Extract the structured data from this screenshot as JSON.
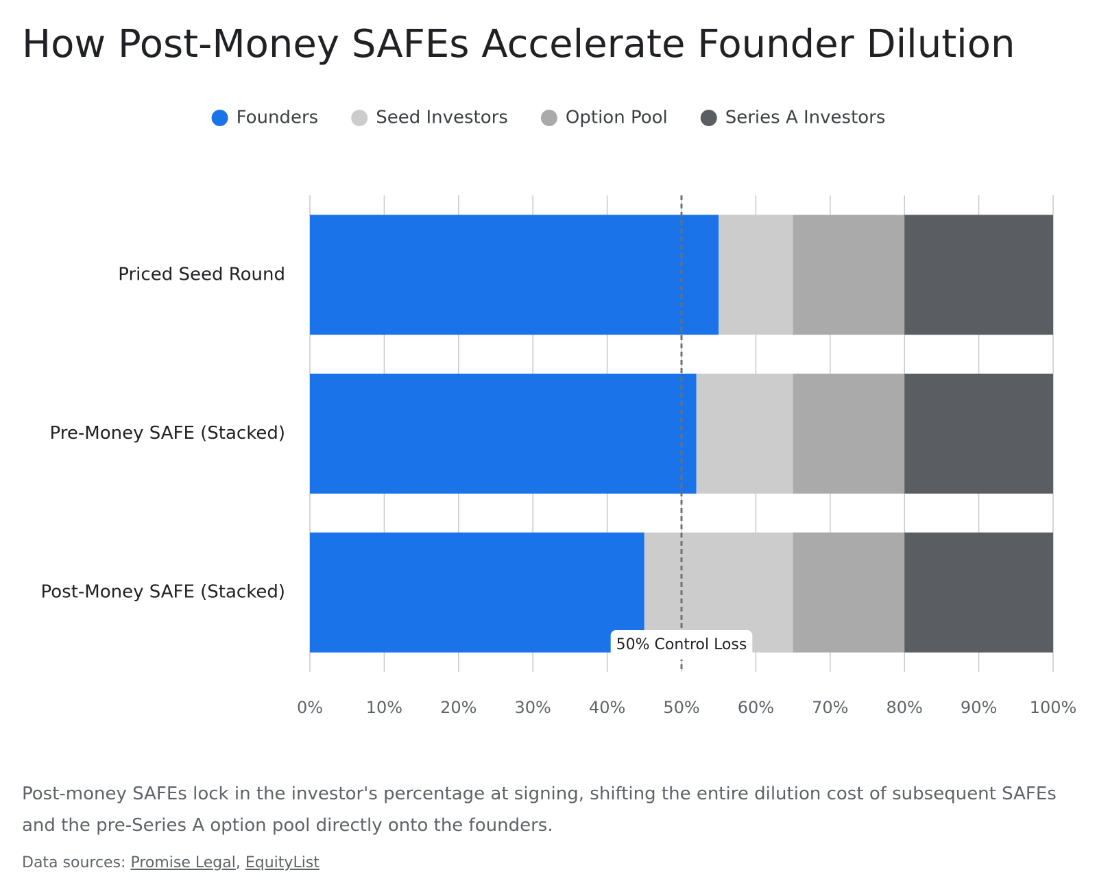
{
  "chart_data": {
    "type": "stacked-barh",
    "title": "How Post-Money SAFEs Accelerate Founder Dilution",
    "categories": [
      "Priced Seed Round",
      "Pre-Money SAFE (Stacked)",
      "Post-Money SAFE (Stacked)"
    ],
    "series": [
      {
        "name": "Founders",
        "color": "#1a73e8",
        "values": [
          55,
          52,
          45
        ]
      },
      {
        "name": "Seed Investors",
        "color": "#cccccc",
        "values": [
          10,
          13,
          20
        ]
      },
      {
        "name": "Option Pool",
        "color": "#aaaaaa",
        "values": [
          15,
          15,
          15
        ]
      },
      {
        "name": "Series A Investors",
        "color": "#5a5d61",
        "values": [
          20,
          20,
          20
        ]
      }
    ],
    "xlim": [
      0,
      100
    ],
    "xticks": [
      {
        "value": 0,
        "label": "0%"
      },
      {
        "value": 10,
        "label": "10%"
      },
      {
        "value": 20,
        "label": "20%"
      },
      {
        "value": 30,
        "label": "30%"
      },
      {
        "value": 40,
        "label": "40%"
      },
      {
        "value": 50,
        "label": "50%"
      },
      {
        "value": 60,
        "label": "60%"
      },
      {
        "value": 70,
        "label": "70%"
      },
      {
        "value": 80,
        "label": "80%"
      },
      {
        "value": 90,
        "label": "90%"
      },
      {
        "value": 100,
        "label": "100%"
      }
    ],
    "grid": true,
    "legend": "top",
    "annotations": [
      {
        "x": 50,
        "label": "50% Control Loss"
      }
    ],
    "caption": "Post-money SAFEs lock in the investor's percentage at signing, shifting the entire dilution cost of subsequent SAFEs and the pre-Series A option pool directly onto the founders.",
    "sources": {
      "prefix": "Data sources:",
      "links": [
        "Promise Legal",
        "EquityList"
      ],
      "separator": ","
    }
  }
}
